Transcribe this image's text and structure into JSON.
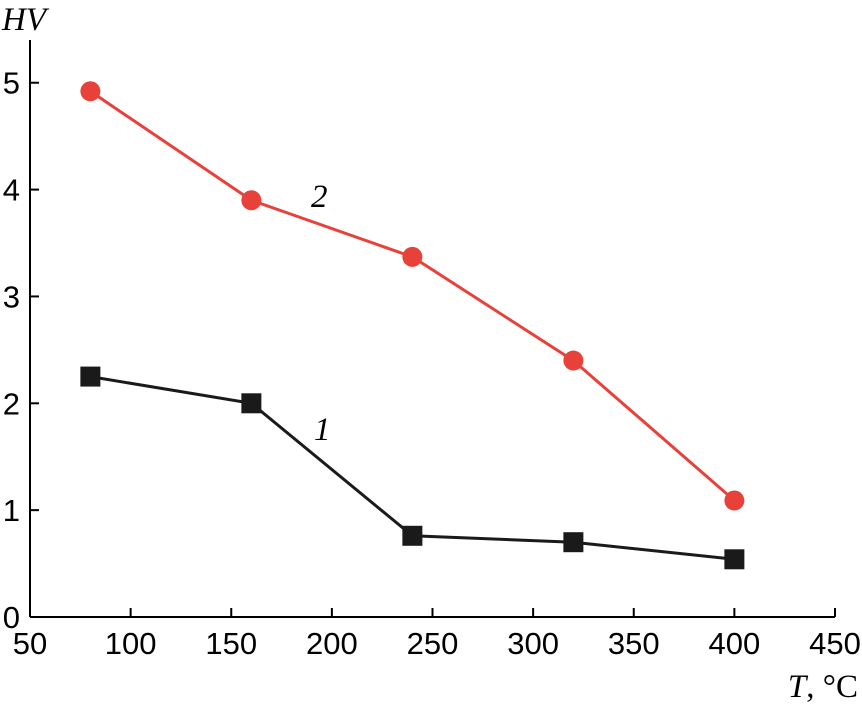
{
  "chart_data": {
    "type": "line",
    "xlabel": "T",
    "xlabel_unit": ", °C",
    "ylabel": "HV",
    "xlim": [
      50,
      450
    ],
    "ylim": [
      0,
      5.4
    ],
    "xticks": [
      50,
      100,
      150,
      200,
      250,
      300,
      350,
      400,
      450
    ],
    "yticks": [
      0,
      1,
      2,
      3,
      4,
      5
    ],
    "grid": false,
    "legend": "none",
    "series": [
      {
        "name": "1",
        "marker": "square",
        "color": "#1a1a1a",
        "x": [
          80,
          160,
          240,
          320,
          400
        ],
        "y": [
          2.25,
          2.0,
          0.76,
          0.7,
          0.54
        ]
      },
      {
        "name": "2",
        "marker": "circle",
        "color": "#e8413a",
        "x": [
          80,
          160,
          240,
          320,
          400
        ],
        "y": [
          4.92,
          3.9,
          3.37,
          2.4,
          1.09
        ]
      }
    ]
  }
}
